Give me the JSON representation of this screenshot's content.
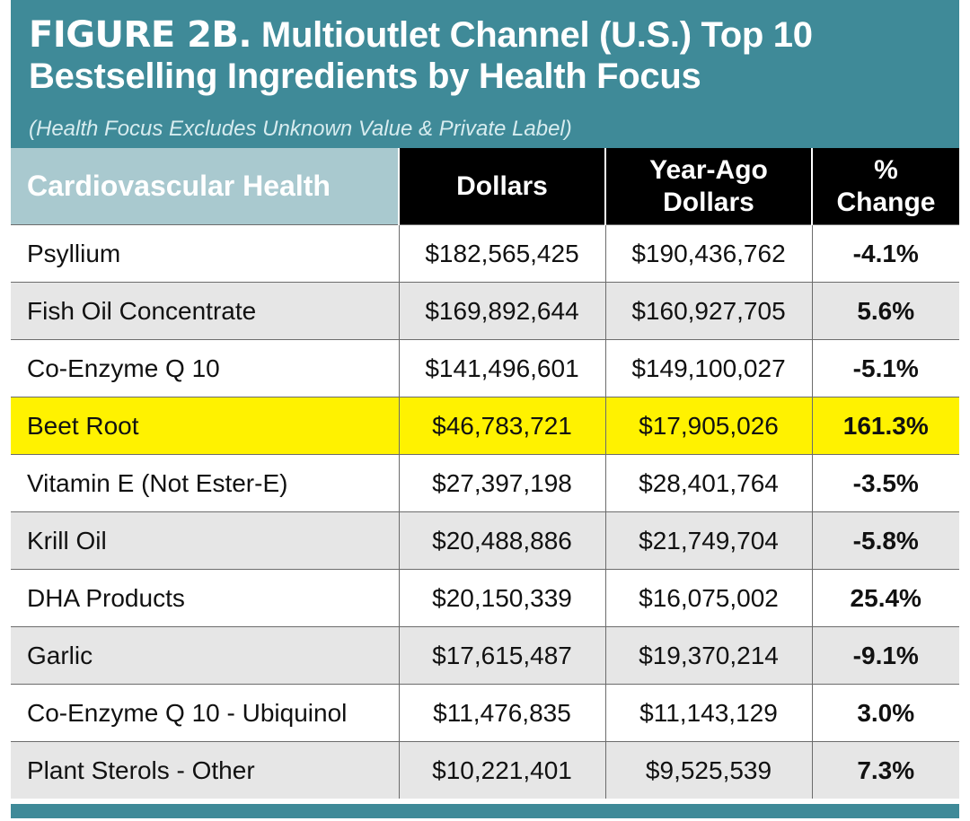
{
  "figure": {
    "label": "FIGURE 2B.",
    "title": "Multioutlet Channel (U.S.) Top 10 Bestselling Ingredients by Health Focus",
    "subtitle": "(Health Focus Excludes Unknown Value & Private Label)"
  },
  "colors": {
    "header_bg": "#3f8a98",
    "category_header_bg": "#a9c9cf",
    "column_header_bg": "#000000",
    "negative": "#d8404b",
    "highlight": "#fff200",
    "alt_row": "#e6e6e6"
  },
  "chart_data": {
    "type": "table",
    "title": "FIGURE 2B. Multioutlet Channel (U.S.) Top 10 Bestselling Ingredients by Health Focus",
    "subtitle": "(Health Focus Excludes Unknown Value & Private Label)",
    "columns": [
      "Cardiovascular Health",
      "Dollars",
      "Year-Ago Dollars",
      "% Change"
    ],
    "highlighted_row": "Beet Root",
    "rows": [
      {
        "name": "Psyllium",
        "dollars": "$182,565,425",
        "year_ago": "$190,436,762",
        "change": "-4.1%"
      },
      {
        "name": "Fish Oil Concentrate",
        "dollars": "$169,892,644",
        "year_ago": "$160,927,705",
        "change": "5.6%"
      },
      {
        "name": "Co-Enzyme Q 10",
        "dollars": "$141,496,601",
        "year_ago": "$149,100,027",
        "change": "-5.1%"
      },
      {
        "name": "Beet Root",
        "dollars": "$46,783,721",
        "year_ago": "$17,905,026",
        "change": "161.3%"
      },
      {
        "name": "Vitamin E (Not Ester-E)",
        "dollars": "$27,397,198",
        "year_ago": "$28,401,764",
        "change": "-3.5%"
      },
      {
        "name": "Krill Oil",
        "dollars": "$20,488,886",
        "year_ago": "$21,749,704",
        "change": "-5.8%"
      },
      {
        "name": "DHA Products",
        "dollars": "$20,150,339",
        "year_ago": "$16,075,002",
        "change": "25.4%"
      },
      {
        "name": "Garlic",
        "dollars": "$17,615,487",
        "year_ago": "$19,370,214",
        "change": "-9.1%"
      },
      {
        "name": "Co-Enzyme Q 10 - Ubiquinol",
        "dollars": "$11,476,835",
        "year_ago": "$11,143,129",
        "change": "3.0%"
      },
      {
        "name": "Plant Sterols - Other",
        "dollars": "$10,221,401",
        "year_ago": "$9,525,539",
        "change": "7.3%"
      }
    ]
  }
}
